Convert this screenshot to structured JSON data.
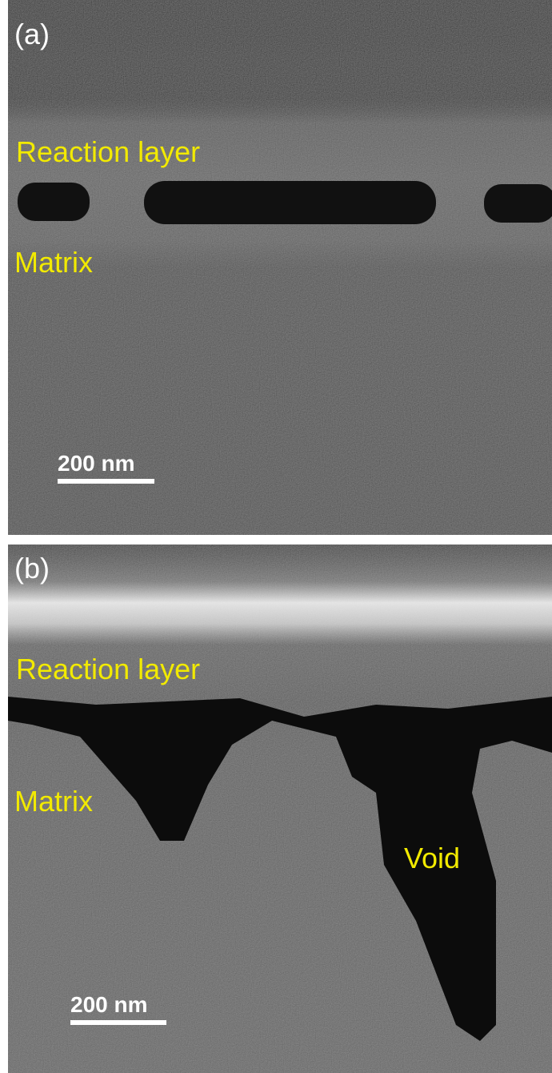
{
  "panels": [
    {
      "label": "(a)",
      "annotations": [
        "Reaction layer",
        "Matrix"
      ],
      "scale_bar": "200 nm"
    },
    {
      "label": "(b)",
      "annotations": [
        "Reaction layer",
        "Matrix",
        "Void"
      ],
      "scale_bar": "200 nm"
    }
  ]
}
